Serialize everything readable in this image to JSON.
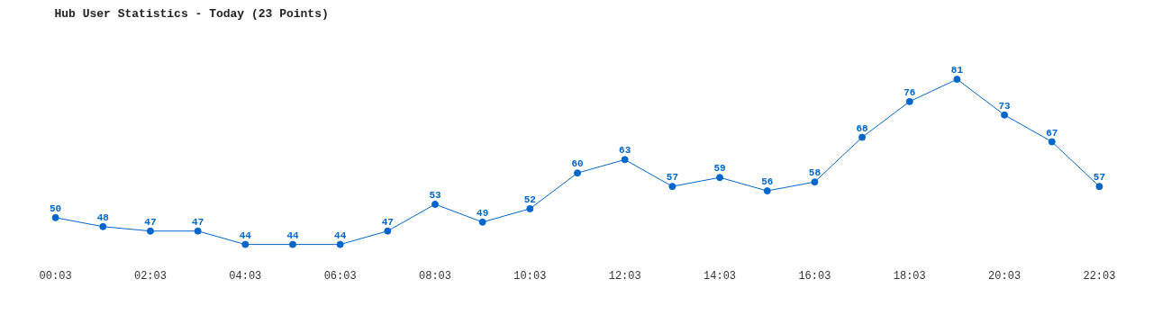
{
  "chart_data": {
    "type": "line",
    "title": "Hub User Statistics - Today (23 Points)",
    "categories": [
      "00:03",
      null,
      "02:03",
      null,
      "04:03",
      null,
      "06:03",
      null,
      "08:03",
      null,
      "10:03",
      null,
      "12:03",
      null,
      "14:03",
      null,
      "16:03",
      null,
      "18:03",
      null,
      "20:03",
      null,
      "22:03"
    ],
    "values": [
      50,
      48,
      47,
      47,
      44,
      44,
      44,
      47,
      53,
      49,
      52,
      60,
      63,
      57,
      59,
      56,
      58,
      68,
      76,
      81,
      73,
      67,
      57
    ],
    "color": "#0066cc",
    "marker": "circle",
    "data_labels": true
  }
}
